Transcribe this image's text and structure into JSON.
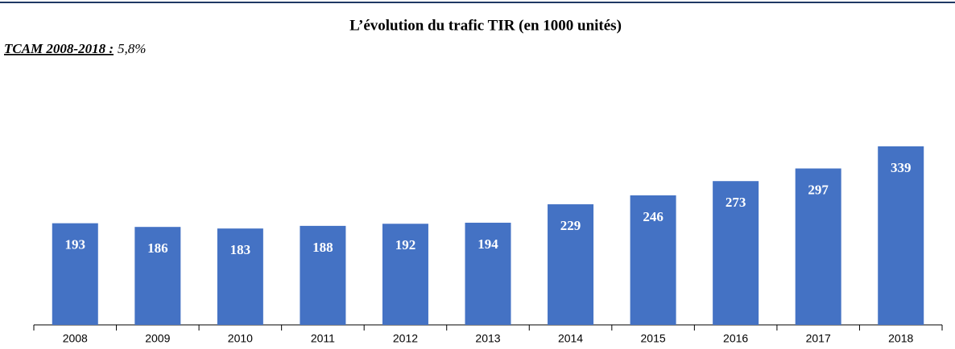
{
  "chart_data": {
    "type": "bar",
    "title": "L’évolution du trafic TIR (en 1000 unités)",
    "subtitle": [
      "TCAM 2008-2018 :",
      "5,8%"
    ],
    "categories": [
      "2008",
      "2009",
      "2010",
      "2011",
      "2012",
      "2013",
      "2014",
      "2015",
      "2016",
      "2017",
      "2018"
    ],
    "values": [
      193,
      186,
      183,
      188,
      192,
      194,
      229,
      246,
      273,
      297,
      339
    ],
    "color": "#4472c4"
  }
}
